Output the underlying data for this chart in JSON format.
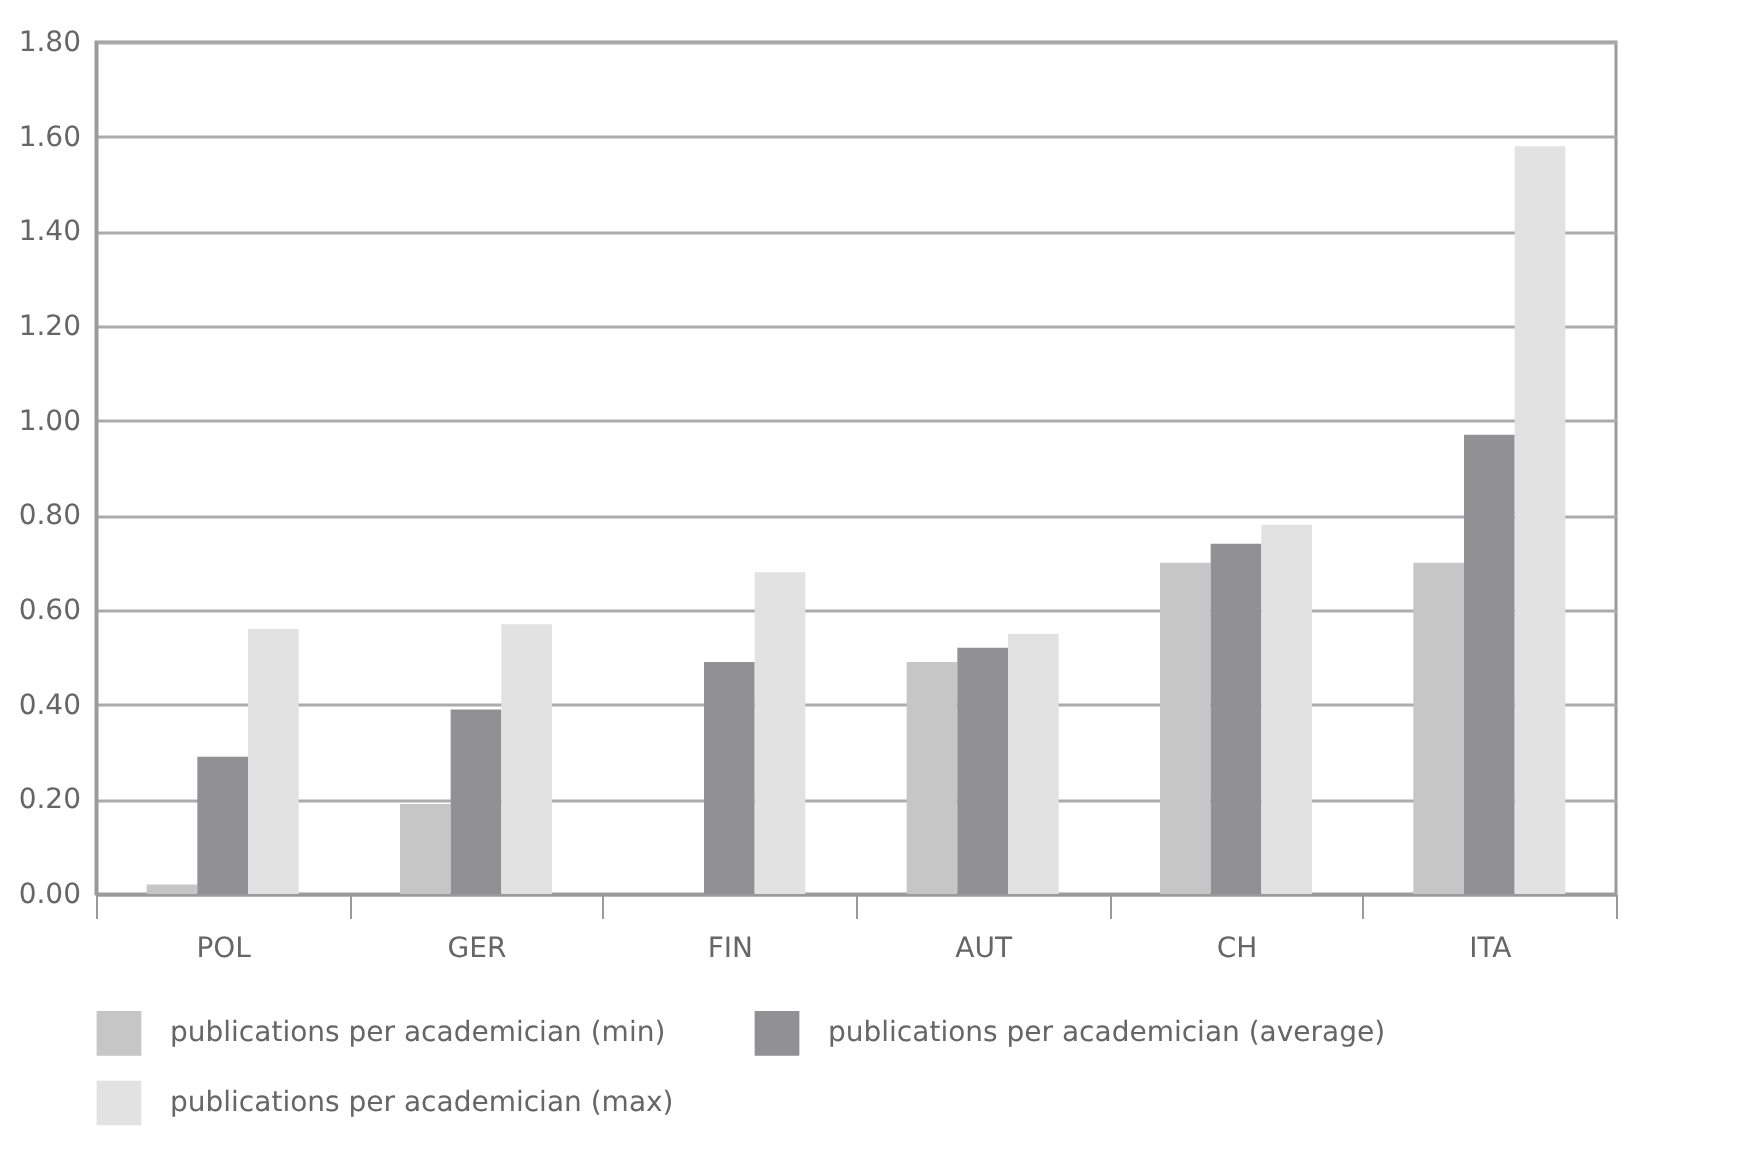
{
  "chart_data": {
    "type": "bar",
    "categories": [
      "POL",
      "GER",
      "FIN",
      "AUT",
      "CH",
      "ITA"
    ],
    "series": [
      {
        "name": "publications per academician (min)",
        "color": "#c6c6c6",
        "values": [
          0.02,
          0.19,
          0,
          0.49,
          0.7,
          0.7
        ]
      },
      {
        "name": "publications per academician (average)",
        "color": "#919193",
        "values": [
          0.29,
          0.39,
          0.49,
          0.52,
          0.74,
          0.97
        ]
      },
      {
        "name": "publications per academician (max)",
        "color": "#e2e2e2",
        "values": [
          0.56,
          0.57,
          0.68,
          0.55,
          0.78,
          1.58
        ]
      }
    ],
    "ylim": [
      0,
      1.8
    ],
    "yticks": [
      {
        "value": 0,
        "label": "0.00"
      },
      {
        "value": 0.2,
        "label": "0.20"
      },
      {
        "value": 0.4,
        "label": "0.40"
      },
      {
        "value": 0.6,
        "label": "0.60"
      },
      {
        "value": 0.8,
        "label": "0.80"
      },
      {
        "value": 1,
        "label": "1.00"
      },
      {
        "value": 1.2,
        "label": "1.20"
      },
      {
        "value": 1.4,
        "label": "1.40"
      },
      {
        "value": 1.6,
        "label": "1.60"
      },
      {
        "value": 1.8,
        "label": "1.80"
      }
    ],
    "grid": "y",
    "legend": "bottom"
  }
}
